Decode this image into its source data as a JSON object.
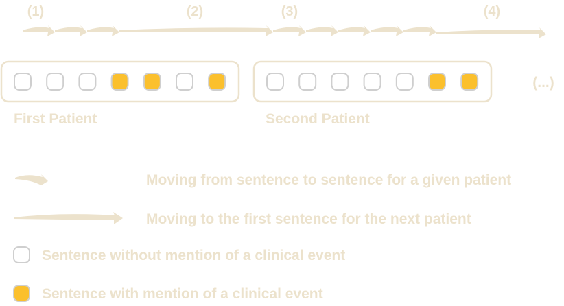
{
  "steps": [
    "(1)",
    "(2)",
    "(3)",
    "(4)"
  ],
  "patients": [
    {
      "label": "First Patient",
      "sentences": [
        false,
        false,
        false,
        true,
        true,
        false,
        true
      ]
    },
    {
      "label": "Second Patient",
      "sentences": [
        false,
        false,
        false,
        false,
        false,
        true,
        true
      ]
    }
  ],
  "ellipsis": "(...)",
  "legend": {
    "short_arrow": "Moving from sentence to sentence for a given patient",
    "long_arrow": "Moving to the first sentence for the next patient",
    "empty_sentence": "Sentence without mention of a clinical event",
    "event_sentence": "Sentence with mention of a clinical event"
  },
  "colors": {
    "decor": "#ece2cc",
    "event_fill": "#fbc02d",
    "empty_fill": "#ffffff",
    "cell_border": "#cfcfcf"
  }
}
